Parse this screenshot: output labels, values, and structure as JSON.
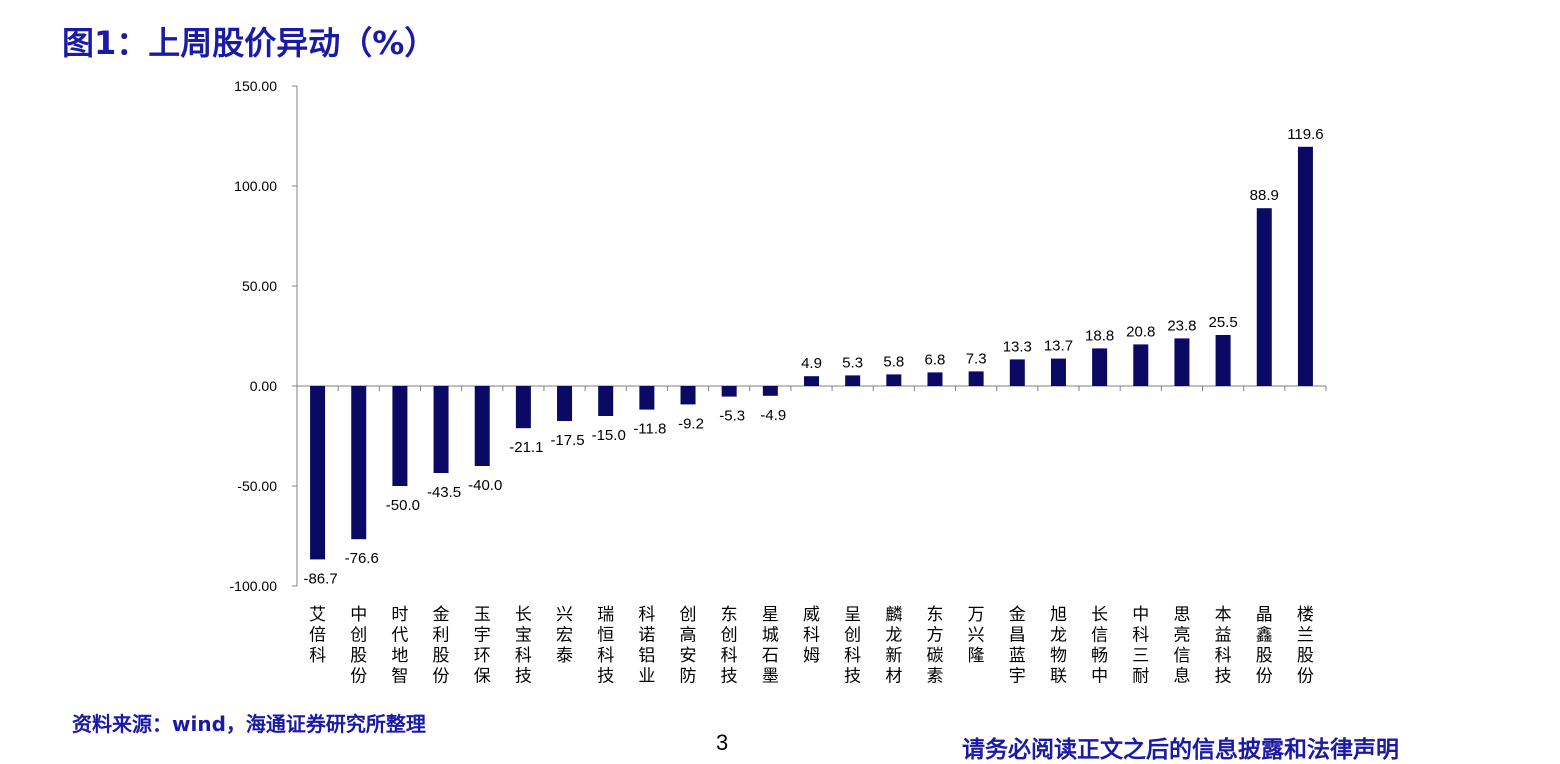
{
  "title": "图1：上周股价异动（%）",
  "footer": {
    "source": "资料来源：wind，海通证券研究所整理",
    "page_number": "3",
    "disclaimer": "请务必阅读正文之后的信息披露和法律声明"
  },
  "chart_data": {
    "type": "bar",
    "categories": [
      "艾倍科",
      "中创股份",
      "时代地智",
      "金利股份",
      "玉宇环保",
      "长宝科技",
      "兴宏泰",
      "瑞恒科技",
      "科诺铝业",
      "创高安防",
      "东创科技",
      "星城石墨",
      "威科姆",
      "呈创科技",
      "麟龙新材",
      "东方碳素",
      "万兴隆",
      "金昌蓝宇",
      "旭龙物联",
      "长信畅中",
      "中科三耐",
      "思亮信息",
      "本益科技",
      "晶鑫股份",
      "楼兰股份"
    ],
    "values": [
      -86.7,
      -76.6,
      -50.0,
      -43.5,
      -40.0,
      -21.1,
      -17.5,
      -15.0,
      -11.8,
      -9.2,
      -5.3,
      -4.9,
      4.9,
      5.3,
      5.8,
      6.8,
      7.3,
      13.3,
      13.7,
      18.8,
      20.8,
      23.8,
      25.5,
      88.9,
      119.6
    ],
    "value_labels": [
      "-86.7",
      "-76.6",
      "-50.0",
      "-43.5",
      "-40.0",
      "-21.1",
      "-17.5",
      "-15.0",
      "-11.8",
      "-9.2",
      "-5.3",
      "-4.9",
      "4.9",
      "5.3",
      "5.8",
      "6.8",
      "7.3",
      "13.3",
      "13.7",
      "18.8",
      "20.8",
      "23.8",
      "25.5",
      "88.9",
      "119.6"
    ],
    "yticks": [
      "150.00",
      "100.00",
      "50.00",
      "0.00",
      "-50.00",
      "-100.00"
    ],
    "ylim": [
      -100,
      150
    ],
    "bar_color": "#0a0a64",
    "grid": false,
    "legend": false
  }
}
